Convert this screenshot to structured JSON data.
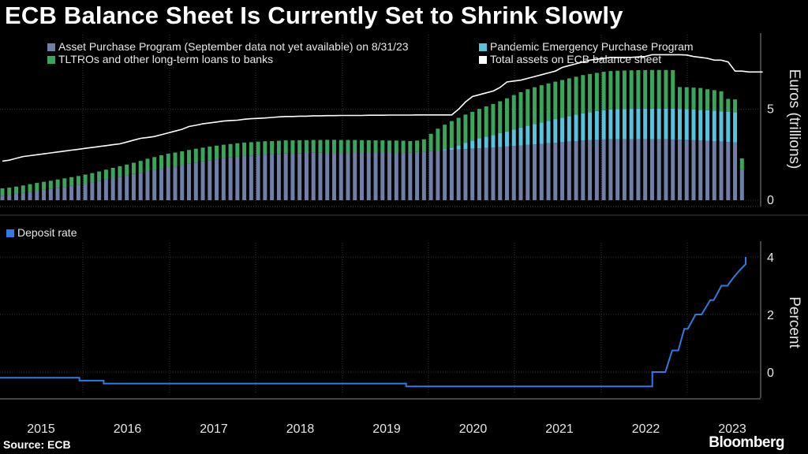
{
  "title": "ECB Balance Sheet Is Currently Set to Shrink Slowly",
  "source": "Source: ECB",
  "brand": "Bloomberg",
  "colors": {
    "app": "#6f7fa8",
    "pepp": "#56c3df",
    "tltro": "#3aa65b",
    "total": "#ffffff",
    "deposit": "#2f7be0",
    "grid": "#333333"
  },
  "chart_data": [
    {
      "type": "bar",
      "title": "ECB Balance Sheet Is Currently Set to Shrink Slowly",
      "ylabel": "Euros (trillions)",
      "ylim": [
        0,
        9.1
      ],
      "yticks": [
        0,
        5
      ],
      "stacked": true,
      "start": "2015-01",
      "frequency": "monthly",
      "legend": {
        "app": "Asset Purchase Program (September data not yet available) on 8/31/23",
        "pepp": "Pandemic Emergency Purchase Program",
        "tltro": "TLTROs and other long-term loans to banks",
        "total": "Total assets on ECB balance sheet"
      },
      "series": [
        {
          "name": "Asset Purchase Program (September data not yet available) on 8/31/23",
          "values": [
            0.25,
            0.28,
            0.35,
            0.4,
            0.46,
            0.52,
            0.57,
            0.62,
            0.68,
            0.73,
            0.79,
            0.84,
            0.91,
            0.97,
            1.05,
            1.13,
            1.21,
            1.29,
            1.36,
            1.44,
            1.51,
            1.58,
            1.65,
            1.73,
            1.8,
            1.86,
            1.93,
            2.0,
            2.07,
            2.13,
            2.2,
            2.25,
            2.3,
            2.35,
            2.39,
            2.43,
            2.46,
            2.49,
            2.51,
            2.53,
            2.55,
            2.57,
            2.58,
            2.59,
            2.6,
            2.61,
            2.61,
            2.62,
            2.62,
            2.62,
            2.62,
            2.62,
            2.62,
            2.62,
            2.62,
            2.62,
            2.62,
            2.62,
            2.62,
            2.63,
            2.65,
            2.67,
            2.7,
            2.73,
            2.75,
            2.77,
            2.79,
            2.81,
            2.83,
            2.85,
            2.87,
            2.89,
            2.92,
            2.95,
            2.98,
            3.01,
            3.04,
            3.07,
            3.1,
            3.13,
            3.16,
            3.19,
            3.22,
            3.25,
            3.28,
            3.3,
            3.32,
            3.34,
            3.35,
            3.35,
            3.35,
            3.35,
            3.35,
            3.35,
            3.35,
            3.35,
            3.35,
            3.34,
            3.33,
            3.32,
            3.3,
            3.28,
            3.27,
            3.25,
            3.22,
            3.2,
            3.17,
            1.7
          ]
        },
        {
          "name": "Pandemic Emergency Purchase Program",
          "values": [
            0,
            0,
            0,
            0,
            0,
            0,
            0,
            0,
            0,
            0,
            0,
            0,
            0,
            0,
            0,
            0,
            0,
            0,
            0,
            0,
            0,
            0,
            0,
            0,
            0,
            0,
            0,
            0,
            0,
            0,
            0,
            0,
            0,
            0,
            0,
            0,
            0,
            0,
            0,
            0,
            0,
            0,
            0,
            0,
            0,
            0,
            0,
            0,
            0,
            0,
            0,
            0,
            0,
            0,
            0,
            0,
            0,
            0,
            0,
            0,
            0,
            0,
            0,
            0,
            0.05,
            0.12,
            0.22,
            0.35,
            0.45,
            0.55,
            0.63,
            0.7,
            0.77,
            0.83,
            0.9,
            0.98,
            1.06,
            1.12,
            1.18,
            1.24,
            1.3,
            1.35,
            1.4,
            1.45,
            1.5,
            1.54,
            1.58,
            1.61,
            1.64,
            1.66,
            1.67,
            1.68,
            1.69,
            1.69,
            1.69,
            1.69,
            1.69,
            1.69,
            1.69,
            1.69,
            1.69,
            1.69,
            1.68,
            1.68,
            1.67,
            1.67,
            1.67,
            0
          ]
        },
        {
          "name": "TLTROs and other long-term loans to banks",
          "values": [
            0.4,
            0.41,
            0.4,
            0.41,
            0.42,
            0.43,
            0.44,
            0.45,
            0.46,
            0.47,
            0.48,
            0.49,
            0.5,
            0.52,
            0.53,
            0.55,
            0.57,
            0.58,
            0.6,
            0.62,
            0.65,
            0.7,
            0.72,
            0.74,
            0.76,
            0.76,
            0.76,
            0.76,
            0.76,
            0.76,
            0.75,
            0.75,
            0.75,
            0.74,
            0.74,
            0.74,
            0.73,
            0.73,
            0.73,
            0.72,
            0.72,
            0.72,
            0.71,
            0.71,
            0.7,
            0.7,
            0.7,
            0.7,
            0.7,
            0.69,
            0.69,
            0.69,
            0.68,
            0.68,
            0.67,
            0.67,
            0.66,
            0.66,
            0.65,
            0.62,
            0.63,
            0.68,
            0.95,
            1.2,
            1.35,
            1.46,
            1.52,
            1.55,
            1.58,
            1.62,
            1.66,
            1.7,
            1.75,
            1.82,
            1.9,
            1.95,
            2.0,
            2.02,
            2.04,
            2.05,
            2.06,
            2.07,
            2.08,
            2.09,
            2.1,
            2.1,
            2.1,
            2.11,
            2.11,
            2.11,
            2.11,
            2.11,
            2.11,
            2.11,
            2.12,
            2.12,
            2.12,
            2.12,
            1.2,
            1.2,
            1.2,
            1.2,
            1.15,
            1.12,
            1.1,
            0.7,
            0.7,
            0.6
          ]
        }
      ],
      "line_series": {
        "name": "Total assets on ECB balance sheet",
        "values": [
          2.15,
          2.2,
          2.3,
          2.4,
          2.45,
          2.5,
          2.55,
          2.6,
          2.65,
          2.7,
          2.75,
          2.8,
          2.85,
          2.9,
          2.95,
          3.0,
          3.05,
          3.1,
          3.2,
          3.3,
          3.4,
          3.45,
          3.5,
          3.6,
          3.7,
          3.8,
          3.9,
          4.05,
          4.12,
          4.2,
          4.25,
          4.3,
          4.35,
          4.38,
          4.4,
          4.45,
          4.48,
          4.5,
          4.52,
          4.55,
          4.58,
          4.6,
          4.6,
          4.62,
          4.62,
          4.64,
          4.64,
          4.65,
          4.65,
          4.66,
          4.66,
          4.66,
          4.66,
          4.67,
          4.67,
          4.67,
          4.68,
          4.68,
          4.68,
          4.68,
          4.69,
          4.69,
          4.69,
          4.69,
          4.69,
          4.69,
          5.0,
          5.4,
          5.7,
          5.8,
          5.9,
          6.0,
          6.2,
          6.5,
          6.55,
          6.6,
          6.7,
          6.8,
          6.9,
          7.0,
          7.1,
          7.3,
          7.4,
          7.5,
          7.6,
          7.7,
          7.75,
          7.8,
          7.85,
          7.85,
          7.85,
          7.85,
          7.88,
          7.9,
          8.0,
          8.0,
          8.0,
          8.0,
          8.0,
          7.98,
          7.9,
          7.85,
          7.8,
          7.7,
          7.7,
          7.6,
          7.1,
          7.1,
          7.05,
          7.05,
          7.05
        ]
      }
    },
    {
      "type": "line",
      "legend": "Deposit rate",
      "ylabel": "Percent",
      "ylim": [
        -1.1,
        4.6
      ],
      "yticks": [
        0,
        2,
        4
      ],
      "xlabels": [
        "2015",
        "2016",
        "2017",
        "2018",
        "2019",
        "2020",
        "2021",
        "2022",
        "2023"
      ],
      "points": [
        [
          2015.0,
          -0.2
        ],
        [
          2015.92,
          -0.2
        ],
        [
          2015.92,
          -0.3
        ],
        [
          2016.2,
          -0.3
        ],
        [
          2016.2,
          -0.4
        ],
        [
          2019.7,
          -0.4
        ],
        [
          2019.7,
          -0.5
        ],
        [
          2022.55,
          -0.5
        ],
        [
          2022.55,
          0.0
        ],
        [
          2022.7,
          0.0
        ],
        [
          2022.78,
          0.75
        ],
        [
          2022.85,
          0.75
        ],
        [
          2022.92,
          1.5
        ],
        [
          2022.96,
          1.5
        ],
        [
          2023.05,
          2.0
        ],
        [
          2023.12,
          2.0
        ],
        [
          2023.22,
          2.5
        ],
        [
          2023.26,
          2.5
        ],
        [
          2023.35,
          3.0
        ],
        [
          2023.42,
          3.0
        ],
        [
          2023.48,
          3.25
        ],
        [
          2023.55,
          3.5
        ],
        [
          2023.65,
          3.75
        ],
        [
          2023.7,
          3.75
        ],
        [
          2023.78,
          4.0
        ]
      ]
    }
  ]
}
